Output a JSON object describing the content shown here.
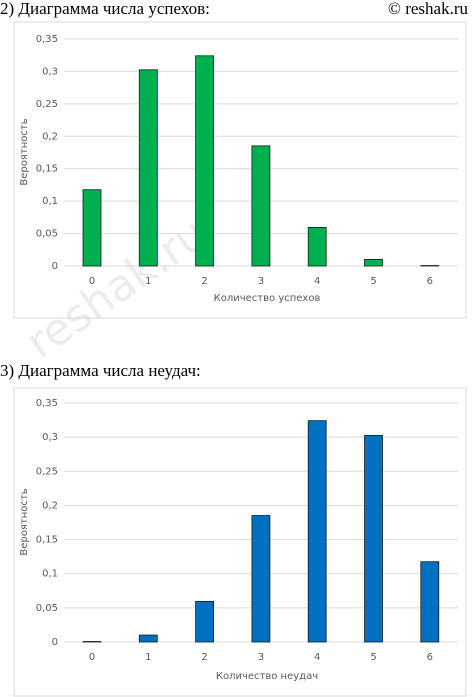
{
  "copyright": "© reshak.ru",
  "watermark": "reshak.ru",
  "chart_data": [
    {
      "type": "bar",
      "title": "2) Диаграмма числа успехов:",
      "x_label": "Количество успехов",
      "y_label": "Вероятность",
      "categories": [
        "0",
        "1",
        "2",
        "3",
        "4",
        "5",
        "6"
      ],
      "values": [
        0.1176,
        0.3025,
        0.3241,
        0.1852,
        0.0595,
        0.0102,
        0.0007
      ],
      "color": "#00b050",
      "ylim": [
        0,
        0.35
      ],
      "yticks": [
        0,
        {
          "value": 0.05,
          "label": "0,05"
        },
        {
          "value": 0.1,
          "label": "0,1"
        },
        {
          "value": 0.15,
          "label": "0,15"
        },
        {
          "value": 0.2,
          "label": "0,2"
        },
        {
          "value": 0.25,
          "label": "0,25"
        },
        {
          "value": 0.3,
          "label": "0,3"
        },
        {
          "value": 0.35,
          "label": "0,35"
        }
      ],
      "grid": true
    },
    {
      "type": "bar",
      "title": "3) Диаграмма числа неудач:",
      "x_label": "Количество неудач",
      "y_label": "Вероятность",
      "categories": [
        "0",
        "1",
        "2",
        "3",
        "4",
        "5",
        "6"
      ],
      "values": [
        0.0007,
        0.0102,
        0.0595,
        0.1852,
        0.3241,
        0.3025,
        0.1176
      ],
      "color": "#0070c0",
      "ylim": [
        0,
        0.35
      ],
      "yticks": [
        0,
        {
          "value": 0.05,
          "label": "0,05"
        },
        {
          "value": 0.1,
          "label": "0,1"
        },
        {
          "value": 0.15,
          "label": "0,15"
        },
        {
          "value": 0.2,
          "label": "0,2"
        },
        {
          "value": 0.25,
          "label": "0,25"
        },
        {
          "value": 0.3,
          "label": "0,3"
        },
        {
          "value": 0.35,
          "label": "0,35"
        }
      ],
      "grid": true
    }
  ]
}
